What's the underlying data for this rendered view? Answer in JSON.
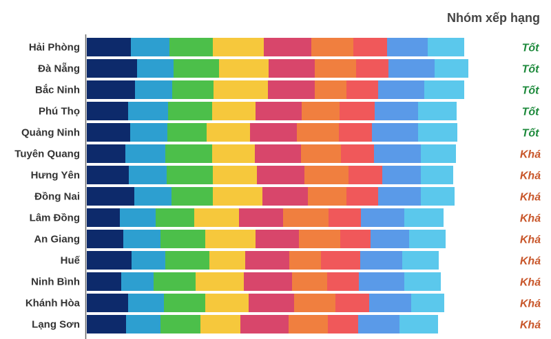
{
  "chart_data": {
    "type": "bar",
    "stacked": true,
    "orientation": "horizontal",
    "rank_header": "Nhóm xếp hạng",
    "categories": [
      "Hải Phòng",
      "Đà Nẵng",
      "Bắc Ninh",
      "Phú Thọ",
      "Quảng Ninh",
      "Tuyên Quang",
      "Hưng Yên",
      "Đồng Nai",
      "Lâm Đồng",
      "An Giang",
      "Huế",
      "Ninh Bình",
      "Khánh Hòa",
      "Lạng Sơn"
    ],
    "ranks": [
      "Tốt",
      "Tốt",
      "Tốt",
      "Tốt",
      "Tốt",
      "Khá",
      "Khá",
      "Khá",
      "Khá",
      "Khá",
      "Khá",
      "Khá",
      "Khá",
      "Khá"
    ],
    "rank_colors": {
      "Tốt": "#1e8a3c",
      "Khá": "#c8562a"
    },
    "segment_colors": [
      "#0d2a6b",
      "#2d9fd0",
      "#4cbf4a",
      "#f6c83c",
      "#d8466b",
      "#f07f3f",
      "#f0585a",
      "#5a9ae8",
      "#5bc8ec"
    ],
    "series": [
      {
        "values": [
          64,
          73,
          70,
          60,
          63,
          56,
          61,
          69,
          48,
          53,
          65,
          50,
          60,
          57
        ]
      },
      {
        "values": [
          56,
          53,
          54,
          58,
          54,
          58,
          55,
          54,
          52,
          54,
          49,
          47,
          52,
          50
        ]
      },
      {
        "values": [
          63,
          66,
          60,
          64,
          57,
          68,
          67,
          60,
          56,
          65,
          64,
          61,
          60,
          58
        ]
      },
      {
        "values": [
          74,
          72,
          79,
          63,
          63,
          62,
          64,
          72,
          65,
          73,
          52,
          70,
          63,
          58
        ]
      },
      {
        "values": [
          69,
          67,
          68,
          67,
          68,
          67,
          69,
          66,
          64,
          63,
          64,
          70,
          66,
          70
        ]
      },
      {
        "values": [
          61,
          60,
          46,
          55,
          61,
          58,
          64,
          56,
          66,
          60,
          46,
          51,
          60,
          57
        ]
      },
      {
        "values": [
          49,
          47,
          46,
          51,
          48,
          48,
          49,
          46,
          47,
          44,
          57,
          46,
          49,
          44
        ]
      },
      {
        "values": [
          59,
          67,
          67,
          63,
          67,
          68,
          56,
          62,
          63,
          56,
          61,
          66,
          61,
          60
        ]
      },
      {
        "values": [
          53,
          49,
          58,
          56,
          57,
          51,
          47,
          49,
          57,
          53,
          53,
          53,
          48,
          56
        ]
      }
    ]
  }
}
